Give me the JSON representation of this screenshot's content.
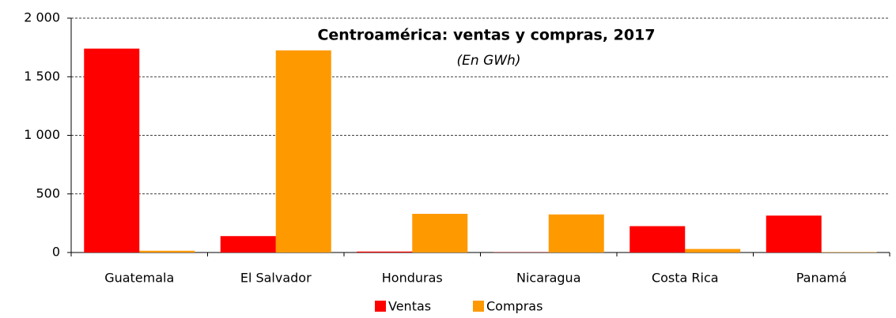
{
  "chart_data": {
    "type": "bar",
    "title": "Centroamérica: ventas y compras, 2017",
    "subtitle": "(En GWh)",
    "categories": [
      "Guatemala",
      "El Salvador",
      "Honduras",
      "Nicaragua",
      "Costa Rica",
      "Panamá"
    ],
    "series": [
      {
        "name": "Ventas",
        "color": "#ff0000",
        "values": [
          1740,
          140,
          8,
          2,
          225,
          315
        ]
      },
      {
        "name": "Compras",
        "color": "#ff9900",
        "values": [
          15,
          1725,
          330,
          325,
          30,
          3
        ]
      }
    ],
    "ylim": [
      0,
      2000
    ],
    "yticks": [
      0,
      500,
      {
        "value": 1000,
        "label": "1 000"
      },
      {
        "value": 1500,
        "label": "1 500"
      },
      {
        "value": 2000,
        "label": "2 000"
      }
    ],
    "grid": true,
    "legend": "bottom"
  }
}
